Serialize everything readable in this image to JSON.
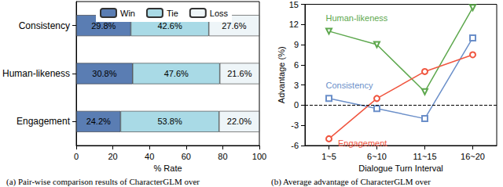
{
  "chart_data": [
    {
      "type": "bar",
      "orientation": "horizontal",
      "stacked": true,
      "data_labels": true,
      "legend": "top",
      "caption": "(a) Pair-wise comparison results of CharacterGLM over",
      "x_label": "% Rate",
      "categories": [
        "Consistency",
        "Human-likeness",
        "Engagement"
      ],
      "xlim": [
        0,
        100
      ],
      "xticks": [
        0,
        20,
        40,
        60,
        80,
        100
      ],
      "series": [
        {
          "name": "Win",
          "color": "#5a7db3",
          "values": [
            29.8,
            30.8,
            24.2
          ],
          "value_labels": [
            "29.8%",
            "30.8%",
            "24.2%"
          ]
        },
        {
          "name": "Tie",
          "color": "#a9dae6",
          "values": [
            42.6,
            47.6,
            53.8
          ],
          "value_labels": [
            "42.6%",
            "47.6%",
            "53.8%"
          ]
        },
        {
          "name": "Loss",
          "color": "#eef5f8",
          "values": [
            27.6,
            21.6,
            22.0
          ],
          "value_labels": [
            "27.6%",
            "21.6%",
            "22.0%"
          ]
        }
      ]
    },
    {
      "type": "line",
      "caption": "(b) Average advantage of CharacterGLM over",
      "x_label": "Dialogue Turn Interval",
      "y_label": "Advantage (%)",
      "categories": [
        "1~5",
        "6~10",
        "11~15",
        "16~20"
      ],
      "ylim": [
        -6,
        15
      ],
      "yticks": [
        -6,
        -3,
        0,
        3,
        6,
        9,
        12,
        15
      ],
      "reference_line": 0,
      "series": [
        {
          "name": "Human-likeness",
          "color": "#5ea84e",
          "marker": "triangle_down",
          "line_style": "solid",
          "values": [
            11,
            9,
            2,
            14.5
          ]
        },
        {
          "name": "Consistency",
          "color": "#6b8fc9",
          "marker": "square",
          "line_style": "solid",
          "values": [
            1,
            -0.5,
            -2,
            10
          ]
        },
        {
          "name": "Engagement",
          "color": "#f0553f",
          "marker": "circle",
          "line_style": "solid",
          "values": [
            -5,
            1,
            5,
            7.5
          ]
        }
      ]
    }
  ]
}
